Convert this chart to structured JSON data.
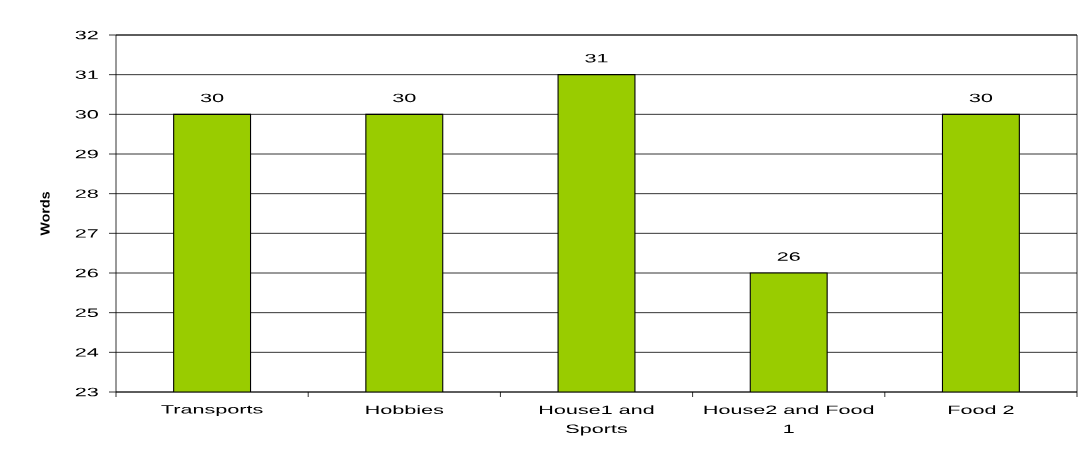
{
  "chart_data": {
    "type": "bar",
    "ylabel": "Words",
    "categories": [
      "Transports",
      "Hobbies",
      "House1 and Sports",
      "House2 and Food 1",
      "Food 2"
    ],
    "values": [
      30,
      30,
      31,
      26,
      30
    ],
    "color": "#99cc00",
    "ylim": [
      23,
      32
    ],
    "yticks": [
      23,
      24,
      25,
      26,
      27,
      28,
      29,
      30,
      31,
      32
    ],
    "grid": "y",
    "data_labels": true
  }
}
